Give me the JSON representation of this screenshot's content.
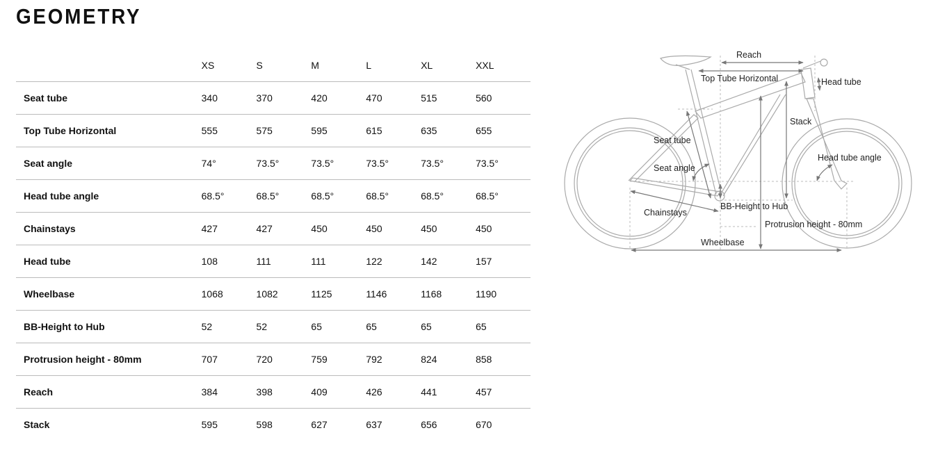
{
  "title": "GEOMETRY",
  "sizes": [
    "XS",
    "S",
    "M",
    "L",
    "XL",
    "XXL"
  ],
  "rows": [
    {
      "label": "Seat tube",
      "values": [
        "340",
        "370",
        "420",
        "470",
        "515",
        "560"
      ]
    },
    {
      "label": "Top Tube Horizontal",
      "values": [
        "555",
        "575",
        "595",
        "615",
        "635",
        "655"
      ]
    },
    {
      "label": "Seat angle",
      "values": [
        "74°",
        "73.5°",
        "73.5°",
        "73.5°",
        "73.5°",
        "73.5°"
      ]
    },
    {
      "label": "Head tube angle",
      "values": [
        "68.5°",
        "68.5°",
        "68.5°",
        "68.5°",
        "68.5°",
        "68.5°"
      ]
    },
    {
      "label": "Chainstays",
      "values": [
        "427",
        "427",
        "450",
        "450",
        "450",
        "450"
      ]
    },
    {
      "label": "Head tube",
      "values": [
        "108",
        "111",
        "111",
        "122",
        "142",
        "157"
      ]
    },
    {
      "label": "Wheelbase",
      "values": [
        "1068",
        "1082",
        "1125",
        "1146",
        "1168",
        "1190"
      ]
    },
    {
      "label": "BB-Height to Hub",
      "values": [
        "52",
        "52",
        "65",
        "65",
        "65",
        "65"
      ]
    },
    {
      "label": "Protrusion height - 80mm",
      "values": [
        "707",
        "720",
        "759",
        "792",
        "824",
        "858"
      ]
    },
    {
      "label": "Reach",
      "values": [
        "384",
        "398",
        "409",
        "426",
        "441",
        "457"
      ]
    },
    {
      "label": "Stack",
      "values": [
        "595",
        "598",
        "627",
        "637",
        "656",
        "670"
      ]
    }
  ],
  "diagram": {
    "reach": "Reach",
    "top_tube": "Top Tube Horizontal",
    "head_tube": "Head tube",
    "stack": "Stack",
    "seat_tube": "Seat tube",
    "seat_angle": "Seat angle",
    "head_tube_angle": "Head tube angle",
    "chainstays": "Chainstays",
    "bb_height": "BB-Height to Hub",
    "protrusion": "Protrusion height - 80mm",
    "wheelbase": "Wheelbase"
  }
}
